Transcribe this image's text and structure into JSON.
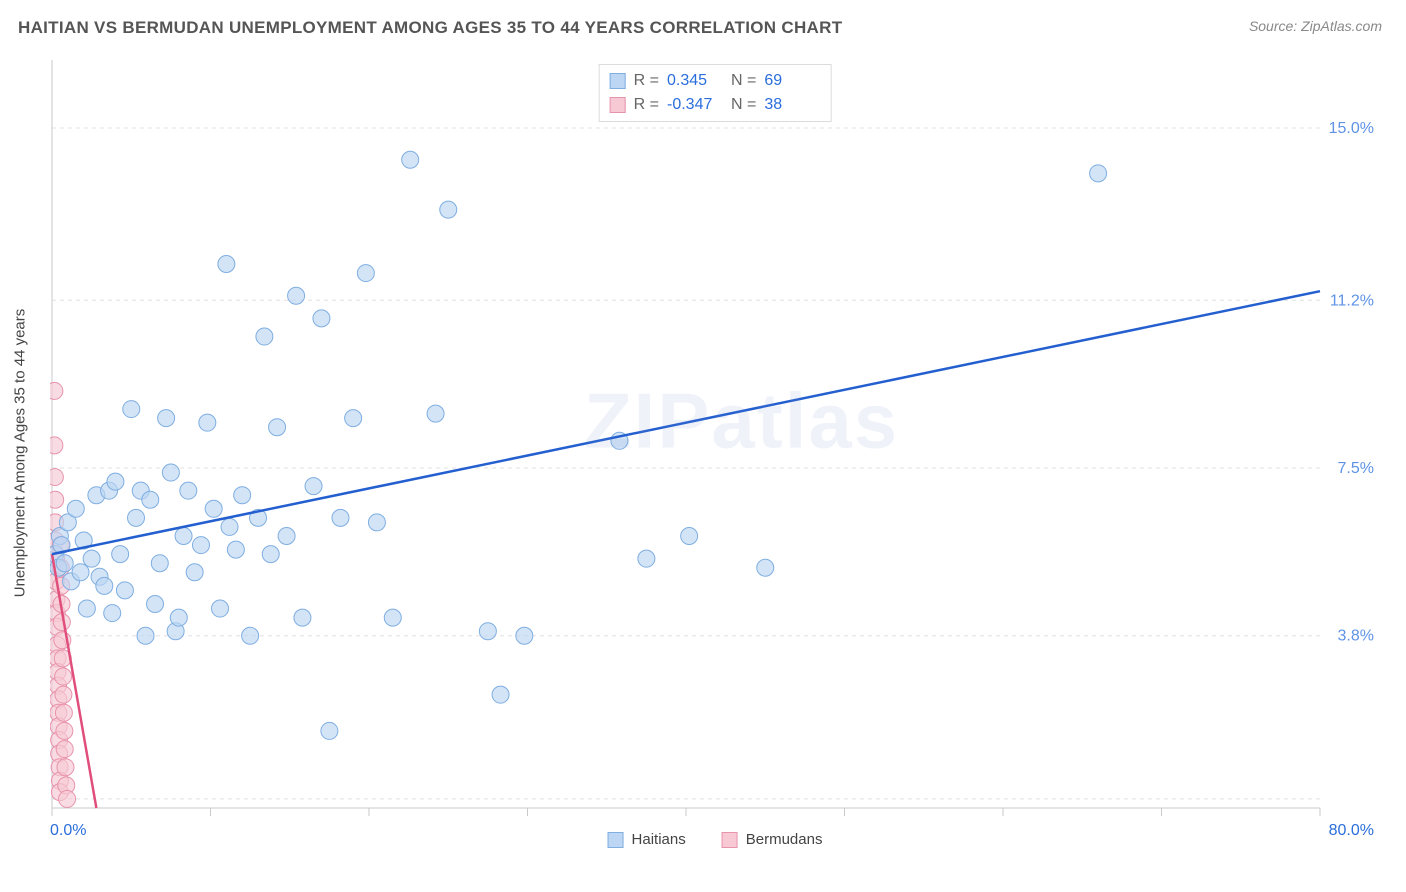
{
  "header": {
    "title": "HAITIAN VS BERMUDAN UNEMPLOYMENT AMONG AGES 35 TO 44 YEARS CORRELATION CHART",
    "source": "Source: ZipAtlas.com"
  },
  "y_axis_label": "Unemployment Among Ages 35 to 44 years",
  "watermark_text": "ZIPatlas",
  "chart": {
    "type": "scatter",
    "xlim": [
      0,
      80
    ],
    "ylim": [
      0,
      16.5
    ],
    "x_tick_positions": [
      0,
      10,
      20,
      30,
      40,
      50,
      60,
      70,
      80
    ],
    "y_grid_positions": [
      0.2,
      3.8,
      7.5,
      11.2,
      15.0
    ],
    "y_grid_labels": [
      "",
      "3.8%",
      "7.5%",
      "11.2%",
      "15.0%"
    ],
    "x_start_label": "0.0%",
    "x_end_label": "80.0%",
    "background_color": "#ffffff",
    "grid_color": "#e0e0e0",
    "axis_color": "#c9c9c9",
    "marker_radius": 8.5,
    "marker_stroke_width": 1,
    "line_width": 2.5,
    "tick_label_color_x": "#2a6edb",
    "tick_label_color_y": "#5e93e6",
    "tick_label_fontsize": 16
  },
  "series": {
    "haitians": {
      "label": "Haitians",
      "fill": "#bcd6f3",
      "stroke": "#7faee1",
      "line_color": "#245fcf",
      "R": "0.345",
      "N": "69",
      "trend_line": {
        "x1": 0,
        "y1": 5.6,
        "x2": 80,
        "y2": 11.4
      },
      "points": [
        [
          0.2,
          5.6
        ],
        [
          0.4,
          5.3
        ],
        [
          0.5,
          6.0
        ],
        [
          0.6,
          5.8
        ],
        [
          0.8,
          5.4
        ],
        [
          1.0,
          6.3
        ],
        [
          1.2,
          5.0
        ],
        [
          1.5,
          6.6
        ],
        [
          1.8,
          5.2
        ],
        [
          2.0,
          5.9
        ],
        [
          2.2,
          4.4
        ],
        [
          2.5,
          5.5
        ],
        [
          2.8,
          6.9
        ],
        [
          3.0,
          5.1
        ],
        [
          3.3,
          4.9
        ],
        [
          3.6,
          7.0
        ],
        [
          3.8,
          4.3
        ],
        [
          4.0,
          7.2
        ],
        [
          4.3,
          5.6
        ],
        [
          4.6,
          4.8
        ],
        [
          5.0,
          8.8
        ],
        [
          5.3,
          6.4
        ],
        [
          5.6,
          7.0
        ],
        [
          5.9,
          3.8
        ],
        [
          6.2,
          6.8
        ],
        [
          6.5,
          4.5
        ],
        [
          6.8,
          5.4
        ],
        [
          7.2,
          8.6
        ],
        [
          7.5,
          7.4
        ],
        [
          7.8,
          3.9
        ],
        [
          8.0,
          4.2
        ],
        [
          8.3,
          6.0
        ],
        [
          8.6,
          7.0
        ],
        [
          9.0,
          5.2
        ],
        [
          9.4,
          5.8
        ],
        [
          9.8,
          8.5
        ],
        [
          10.2,
          6.6
        ],
        [
          10.6,
          4.4
        ],
        [
          11.0,
          12.0
        ],
        [
          11.2,
          6.2
        ],
        [
          11.6,
          5.7
        ],
        [
          12.0,
          6.9
        ],
        [
          12.5,
          3.8
        ],
        [
          13.0,
          6.4
        ],
        [
          13.4,
          10.4
        ],
        [
          13.8,
          5.6
        ],
        [
          14.2,
          8.4
        ],
        [
          14.8,
          6.0
        ],
        [
          15.4,
          11.3
        ],
        [
          15.8,
          4.2
        ],
        [
          16.5,
          7.1
        ],
        [
          17.0,
          10.8
        ],
        [
          17.5,
          1.7
        ],
        [
          18.2,
          6.4
        ],
        [
          19.0,
          8.6
        ],
        [
          19.8,
          11.8
        ],
        [
          20.5,
          6.3
        ],
        [
          21.5,
          4.2
        ],
        [
          22.6,
          14.3
        ],
        [
          24.2,
          8.7
        ],
        [
          25.0,
          13.2
        ],
        [
          27.5,
          3.9
        ],
        [
          28.3,
          2.5
        ],
        [
          29.8,
          3.8
        ],
        [
          35.8,
          8.1
        ],
        [
          37.5,
          5.5
        ],
        [
          40.2,
          6.0
        ],
        [
          45.0,
          5.3
        ],
        [
          66.0,
          14.0
        ]
      ]
    },
    "bermudans": {
      "label": "Bermudans",
      "fill": "#f6c9d4",
      "stroke": "#e893ac",
      "line_color": "#e04f7c",
      "R": "-0.347",
      "N": "38",
      "trend_line": {
        "x1": 0,
        "y1": 5.6,
        "x2": 2.8,
        "y2": 0
      },
      "points": [
        [
          0.15,
          9.2
        ],
        [
          0.15,
          8.0
        ],
        [
          0.18,
          7.3
        ],
        [
          0.2,
          6.8
        ],
        [
          0.2,
          6.3
        ],
        [
          0.22,
          5.9
        ],
        [
          0.25,
          5.5
        ],
        [
          0.25,
          5.0
        ],
        [
          0.28,
          4.6
        ],
        [
          0.3,
          4.3
        ],
        [
          0.3,
          4.0
        ],
        [
          0.32,
          3.6
        ],
        [
          0.35,
          3.3
        ],
        [
          0.35,
          3.0
        ],
        [
          0.38,
          2.7
        ],
        [
          0.4,
          2.4
        ],
        [
          0.4,
          2.1
        ],
        [
          0.42,
          1.8
        ],
        [
          0.45,
          1.5
        ],
        [
          0.45,
          1.2
        ],
        [
          0.48,
          0.9
        ],
        [
          0.5,
          0.6
        ],
        [
          0.5,
          0.35
        ],
        [
          0.55,
          5.8
        ],
        [
          0.55,
          5.3
        ],
        [
          0.58,
          4.9
        ],
        [
          0.6,
          4.5
        ],
        [
          0.62,
          4.1
        ],
        [
          0.65,
          3.7
        ],
        [
          0.68,
          3.3
        ],
        [
          0.7,
          2.9
        ],
        [
          0.72,
          2.5
        ],
        [
          0.75,
          2.1
        ],
        [
          0.78,
          1.7
        ],
        [
          0.8,
          1.3
        ],
        [
          0.85,
          0.9
        ],
        [
          0.9,
          0.5
        ],
        [
          0.95,
          0.2
        ]
      ]
    }
  },
  "legend_bottom": {
    "items": [
      "Haitians",
      "Bermudans"
    ]
  }
}
